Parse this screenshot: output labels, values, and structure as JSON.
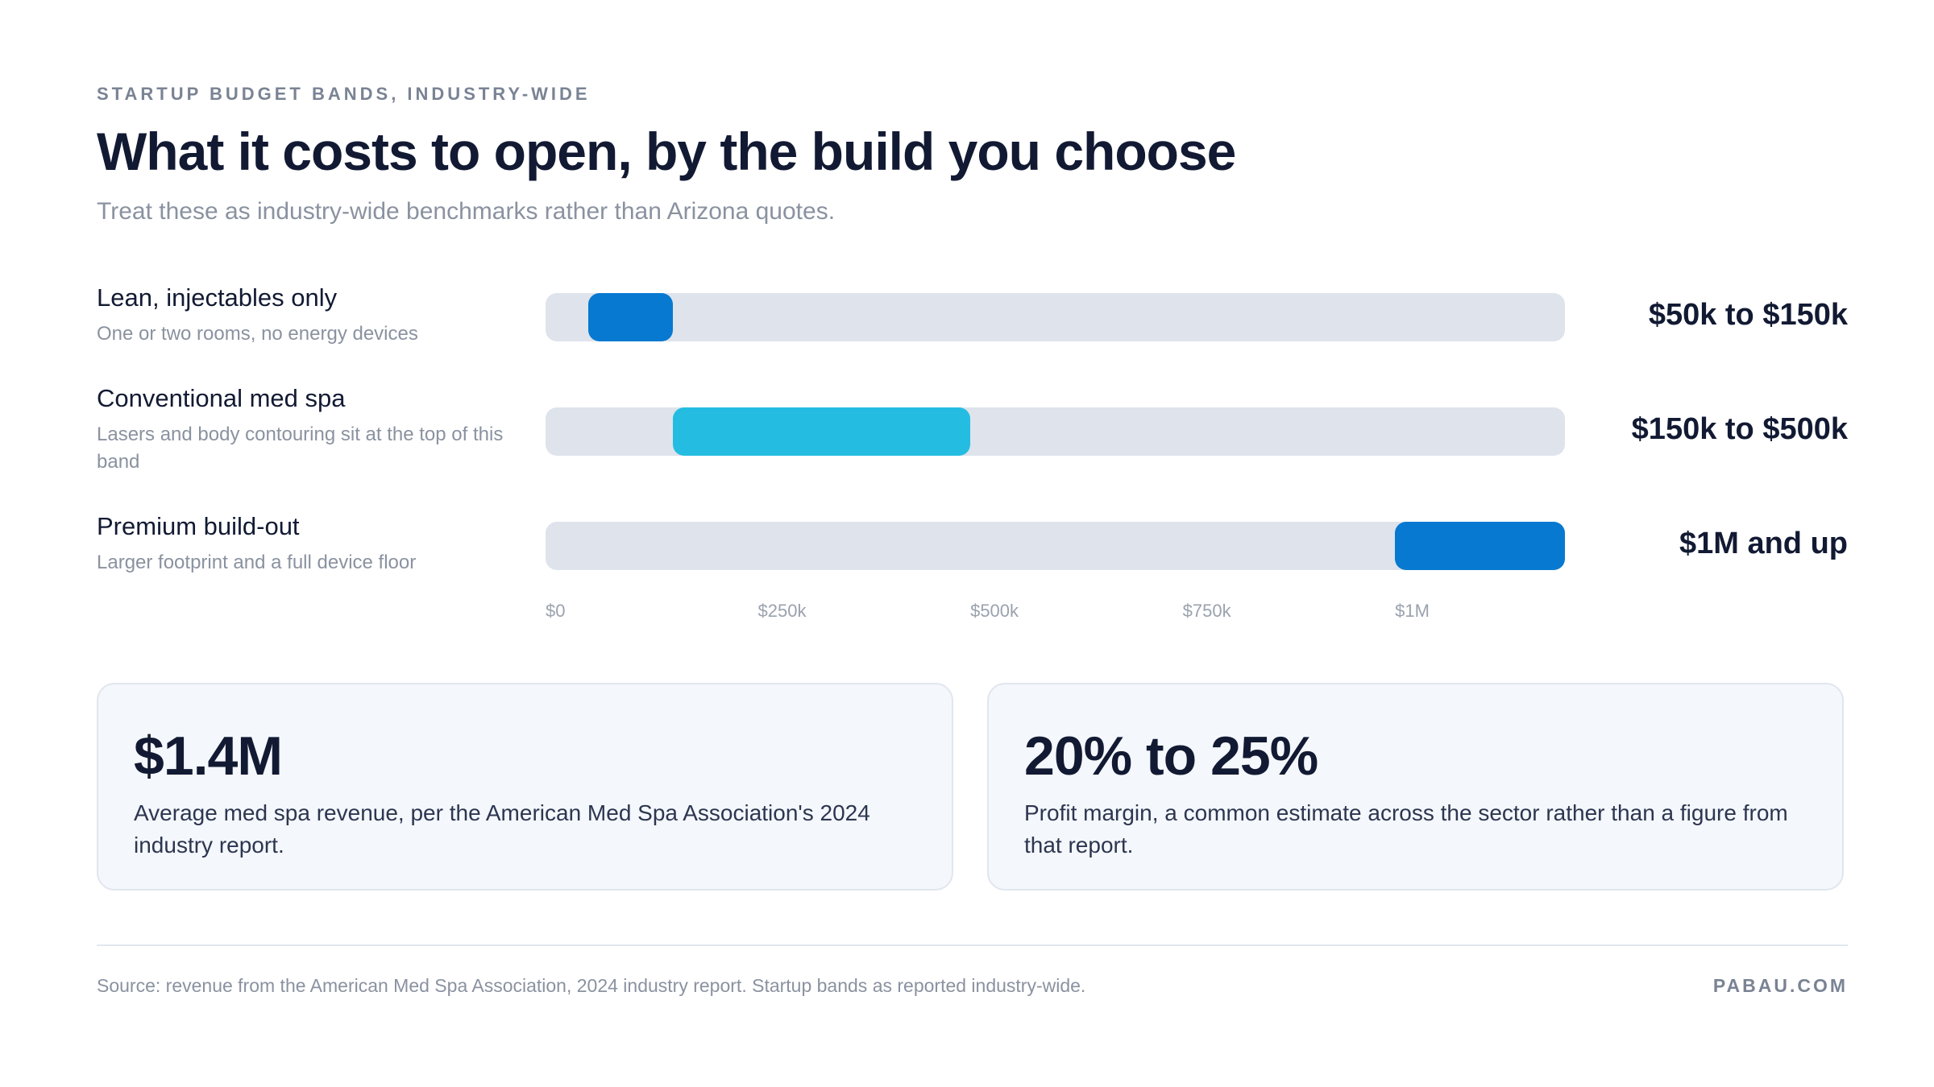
{
  "header": {
    "eyebrow": "STARTUP BUDGET BANDS, INDUSTRY-WIDE",
    "title": "What it costs to open, by the build you choose",
    "subtitle": "Treat these as industry-wide benchmarks rather than Arizona quotes."
  },
  "chart_data": {
    "type": "bar",
    "orientation": "horizontal-range",
    "xlim": [
      0,
      1200000
    ],
    "x_ticks": [
      "$0",
      "$250k",
      "$500k",
      "$750k",
      "$1M"
    ],
    "x_tick_values": [
      0,
      250000,
      500000,
      750000,
      1000000
    ],
    "grid": false,
    "legend": "none",
    "series": [
      {
        "label": "Lean, injectables only",
        "description": "One or two rooms, no energy devices",
        "start": 50000,
        "end": 150000,
        "range_text": "$50k to $150k",
        "color": "#0779d1"
      },
      {
        "label": "Conventional med spa",
        "description": "Lasers and body contouring sit at the top of this band",
        "start": 150000,
        "end": 500000,
        "range_text": "$150k to $500k",
        "color": "#24bde1"
      },
      {
        "label": "Premium build-out",
        "description": "Larger footprint and a full device floor",
        "start": 1000000,
        "end": 1200000,
        "range_text": "$1M and up",
        "color": "#0779d1"
      }
    ]
  },
  "cards": [
    {
      "value": "$1.4M",
      "text": "Average med spa revenue, per the American Med Spa Association's 2024 industry report."
    },
    {
      "value": "20% to 25%",
      "text": "Profit margin, a common estimate across the sector rather than a figure from that report."
    }
  ],
  "footer": {
    "source": "Source: revenue from the American Med Spa Association, 2024 industry report. Startup bands as reported industry-wide.",
    "brand": "PABAU.COM"
  }
}
